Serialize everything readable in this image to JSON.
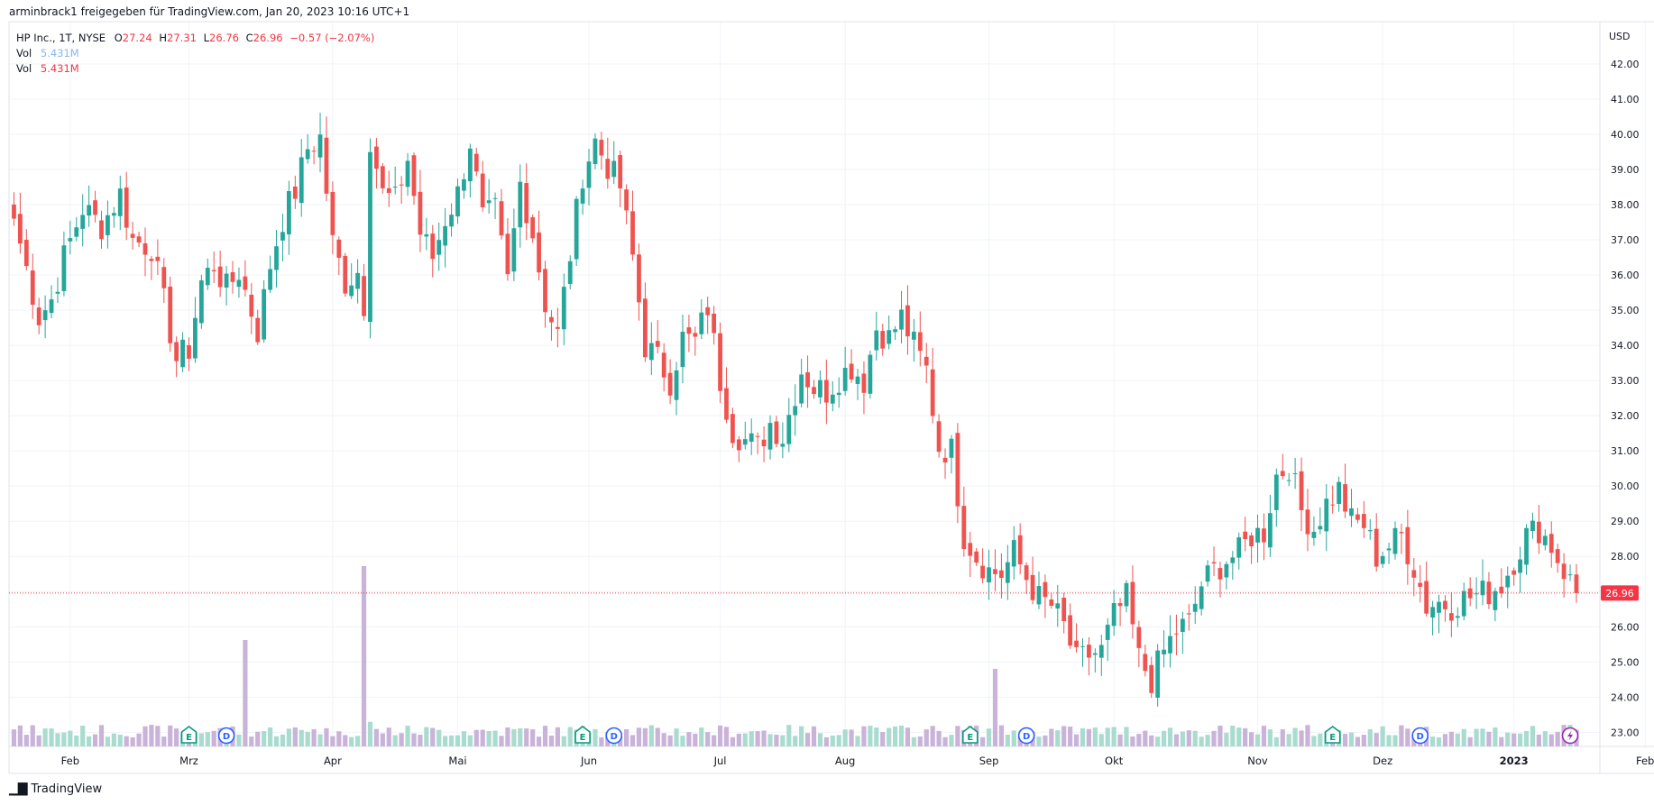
{
  "header": {
    "attribution": "arminbrack1 freigegeben für TradingView.com, Jan 20, 2023 10:16 UTC+1"
  },
  "legend": {
    "symbol": "HP Inc., 1T, NYSE",
    "o_label": "O",
    "o_value": "27.24",
    "h_label": "H",
    "h_value": "27.31",
    "l_label": "L",
    "l_value": "26.76",
    "c_label": "C",
    "c_value": "26.96",
    "change": "−0.57 (−2.07%)",
    "vol_label": "Vol",
    "vol_value_1": "5.431M",
    "vol_value_2": "5.431M"
  },
  "footer": {
    "brand": "TradingView"
  },
  "colors": {
    "up": "#26a69a",
    "down": "#ef5350",
    "vol_up": "#a9dccf",
    "vol_down": "#c9b3d8",
    "grid": "#f0f3fa",
    "price_line": "#f23645"
  },
  "chart_data": {
    "type": "candlestick",
    "currency_label": "USD",
    "last_price": "26.96",
    "y_range": [
      22.6,
      43.2
    ],
    "y_ticks": [
      "23.00",
      "24.00",
      "25.00",
      "26.00",
      "27.00",
      "28.00",
      "29.00",
      "30.00",
      "31.00",
      "32.00",
      "33.00",
      "34.00",
      "35.00",
      "36.00",
      "37.00",
      "38.00",
      "39.00",
      "40.00",
      "41.00",
      "42.00"
    ],
    "x_ticks": [
      {
        "label": "Feb",
        "idx": 9
      },
      {
        "label": "Mrz",
        "idx": 28
      },
      {
        "label": "Apr",
        "idx": 51
      },
      {
        "label": "Mai",
        "idx": 71
      },
      {
        "label": "Jun",
        "idx": 92
      },
      {
        "label": "Jul",
        "idx": 113
      },
      {
        "label": "Aug",
        "idx": 133
      },
      {
        "label": "Sep",
        "idx": 156
      },
      {
        "label": "Okt",
        "idx": 176
      },
      {
        "label": "Nov",
        "idx": 199
      },
      {
        "label": "Dez",
        "idx": 219
      },
      {
        "label": "2023",
        "idx": 240
      },
      {
        "label": "Feb",
        "idx": 261
      }
    ],
    "events": [
      {
        "type": "E",
        "idx": 28
      },
      {
        "type": "D",
        "idx": 34
      },
      {
        "type": "E",
        "idx": 91
      },
      {
        "type": "D",
        "idx": 96
      },
      {
        "type": "E",
        "idx": 153
      },
      {
        "type": "D",
        "idx": 162
      },
      {
        "type": "E",
        "idx": 211
      },
      {
        "type": "D",
        "idx": 225
      },
      {
        "type": "S",
        "idx": 249
      }
    ],
    "anchors": [
      [
        0,
        37.6
      ],
      [
        2,
        36.2
      ],
      [
        4,
        34.8
      ],
      [
        6,
        35.3
      ],
      [
        8,
        36.5
      ],
      [
        11,
        37.9
      ],
      [
        14,
        37.4
      ],
      [
        17,
        38.3
      ],
      [
        19,
        37.0
      ],
      [
        22,
        36.8
      ],
      [
        24,
        35.2
      ],
      [
        26,
        33.6
      ],
      [
        28,
        33.9
      ],
      [
        30,
        35.8
      ],
      [
        32,
        36.3
      ],
      [
        34,
        35.6
      ],
      [
        36,
        36.1
      ],
      [
        39,
        34.4
      ],
      [
        41,
        36.3
      ],
      [
        43,
        37.6
      ],
      [
        45,
        38.4
      ],
      [
        47,
        39.6
      ],
      [
        49,
        39.9
      ],
      [
        51,
        36.9
      ],
      [
        53,
        35.8
      ],
      [
        55,
        36.1
      ],
      [
        56,
        35.2
      ],
      [
        57,
        39.9
      ],
      [
        59,
        38.3
      ],
      [
        61,
        38.1
      ],
      [
        63,
        39.3
      ],
      [
        65,
        37.2
      ],
      [
        67,
        36.5
      ],
      [
        69,
        37.6
      ],
      [
        71,
        38.3
      ],
      [
        73,
        39.8
      ],
      [
        75,
        37.6
      ],
      [
        77,
        37.8
      ],
      [
        79,
        35.8
      ],
      [
        81,
        38.6
      ],
      [
        83,
        37.2
      ],
      [
        85,
        35.2
      ],
      [
        87,
        34.3
      ],
      [
        89,
        36.6
      ],
      [
        91,
        38.9
      ],
      [
        93,
        39.8
      ],
      [
        95,
        39.1
      ],
      [
        97,
        38.5
      ],
      [
        99,
        36.5
      ],
      [
        101,
        34.0
      ],
      [
        103,
        33.6
      ],
      [
        105,
        33.0
      ],
      [
        107,
        34.2
      ],
      [
        109,
        34.1
      ],
      [
        111,
        35.1
      ],
      [
        113,
        33.0
      ],
      [
        115,
        31.6
      ],
      [
        117,
        31.3
      ],
      [
        119,
        31.1
      ],
      [
        121,
        31.8
      ],
      [
        123,
        31.4
      ],
      [
        126,
        33.3
      ],
      [
        128,
        32.8
      ],
      [
        130,
        32.7
      ],
      [
        132,
        33.1
      ],
      [
        134,
        33.4
      ],
      [
        136,
        33.0
      ],
      [
        138,
        34.5
      ],
      [
        140,
        34.2
      ],
      [
        142,
        34.8
      ],
      [
        144,
        34.0
      ],
      [
        146,
        33.3
      ],
      [
        148,
        31.1
      ],
      [
        150,
        31.0
      ],
      [
        152,
        28.6
      ],
      [
        154,
        28.0
      ],
      [
        156,
        27.6
      ],
      [
        158,
        27.5
      ],
      [
        160,
        28.1
      ],
      [
        162,
        27.4
      ],
      [
        164,
        26.8
      ],
      [
        166,
        26.6
      ],
      [
        168,
        26.0
      ],
      [
        170,
        25.0
      ],
      [
        172,
        25.2
      ],
      [
        174,
        25.3
      ],
      [
        176,
        26.3
      ],
      [
        178,
        26.8
      ],
      [
        180,
        25.1
      ],
      [
        182,
        24.5
      ],
      [
        184,
        25.3
      ],
      [
        186,
        25.9
      ],
      [
        188,
        26.1
      ],
      [
        190,
        27.2
      ],
      [
        192,
        27.6
      ],
      [
        194,
        27.9
      ],
      [
        196,
        28.1
      ],
      [
        198,
        28.6
      ],
      [
        200,
        28.7
      ],
      [
        202,
        30.3
      ],
      [
        204,
        30.6
      ],
      [
        206,
        29.3
      ],
      [
        208,
        28.8
      ],
      [
        210,
        29.5
      ],
      [
        212,
        29.9
      ],
      [
        214,
        29.0
      ],
      [
        216,
        28.9
      ],
      [
        218,
        28.0
      ],
      [
        220,
        28.3
      ],
      [
        222,
        28.6
      ],
      [
        224,
        27.7
      ],
      [
        226,
        26.6
      ],
      [
        228,
        26.7
      ],
      [
        230,
        26.6
      ],
      [
        232,
        26.8
      ],
      [
        234,
        26.9
      ],
      [
        236,
        27.0
      ],
      [
        238,
        27.2
      ],
      [
        240,
        27.9
      ],
      [
        242,
        28.6
      ],
      [
        244,
        28.8
      ],
      [
        246,
        28.3
      ],
      [
        248,
        27.6
      ],
      [
        250,
        26.96
      ]
    ]
  }
}
